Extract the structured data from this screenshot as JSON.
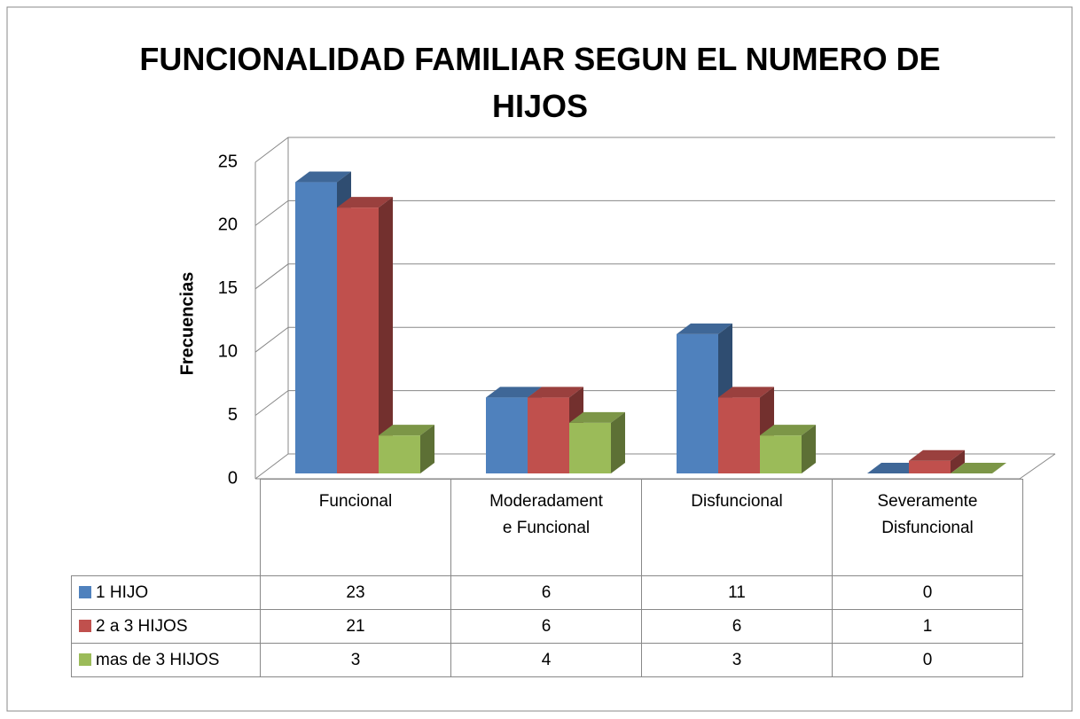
{
  "chart_data": {
    "type": "bar3d",
    "title": "FUNCIONALIDAD FAMILIAR SEGUN EL NUMERO DE HIJOS",
    "y_label": "Frecuencias",
    "categories": [
      "Funcional",
      "Moderadamente Funcional",
      "Disfuncional",
      "Severamente Disfuncional"
    ],
    "series": [
      {
        "name": "1 HIJO",
        "color": "#4f81bd",
        "values": [
          23,
          6,
          11,
          0
        ]
      },
      {
        "name": "2 a 3 HIJOS",
        "color": "#c0504d",
        "values": [
          21,
          6,
          6,
          1
        ]
      },
      {
        "name": "mas de 3 HIJOS",
        "color": "#9bbb59",
        "values": [
          3,
          4,
          3,
          0
        ]
      }
    ],
    "ylim": [
      0,
      25
    ],
    "yticks": [
      0,
      5,
      10,
      15,
      20,
      25
    ],
    "grid": true
  }
}
